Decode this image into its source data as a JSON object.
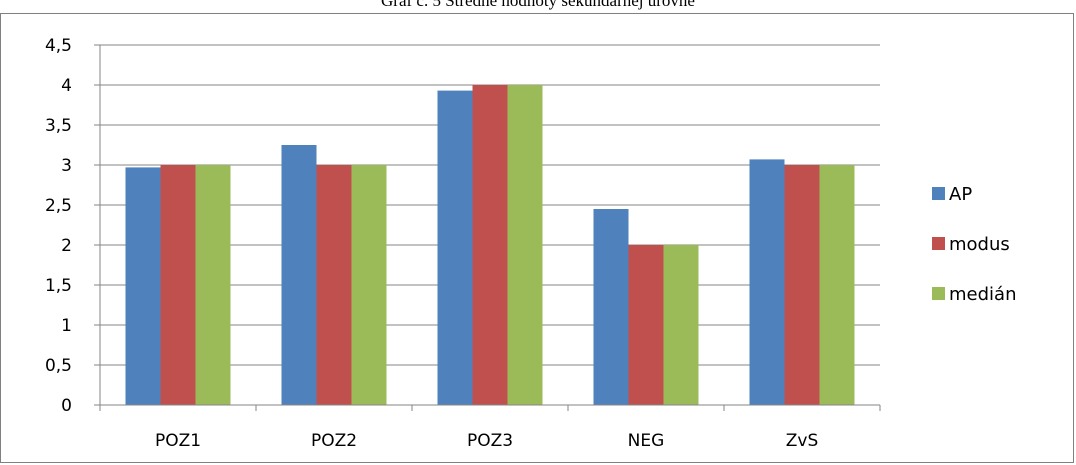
{
  "caption": "Graf č. 5 Stredné hodnoty sekundárnej úrovne",
  "chart_data": {
    "type": "bar",
    "title": "",
    "xlabel": "",
    "ylabel": "",
    "categories": [
      "POZ1",
      "POZ2",
      "POZ3",
      "NEG",
      "ZvS"
    ],
    "series": [
      {
        "name": "AP",
        "values": [
          2.97,
          3.25,
          3.93,
          2.45,
          3.07
        ],
        "color": "#4F81BD"
      },
      {
        "name": "modus",
        "values": [
          3,
          3,
          4,
          2,
          3
        ],
        "color": "#C0504D"
      },
      {
        "name": "medián",
        "values": [
          3,
          3,
          4,
          2,
          3
        ],
        "color": "#9BBB59"
      }
    ],
    "ylim": [
      0,
      4.5
    ],
    "ytick_step": 0.5,
    "ytick_labels": [
      "0",
      "0,5",
      "1",
      "1,5",
      "2",
      "2,5",
      "3",
      "3,5",
      "4",
      "4,5"
    ],
    "grid": true,
    "legend_position": "right"
  }
}
